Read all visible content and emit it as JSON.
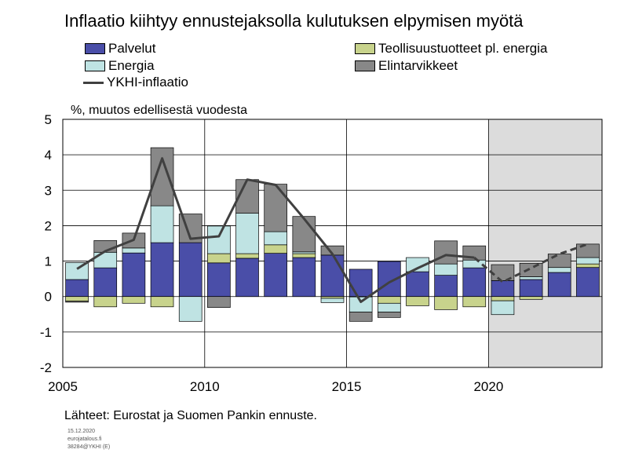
{
  "title": "Inflaatio kiihtyy ennustejaksolla kulutuksen elpymisen myötä",
  "source": "Lähteet: Eurostat ja Suomen Pankin ennuste.",
  "meta": [
    "15.12.2020",
    "eurojatalous.fi",
    "38284@YKHI (E)"
  ],
  "chart_data": {
    "type": "bar",
    "subtype": "stacked bar with line overlay",
    "title": "Inflaatio kiihtyy ennustejaksolla kulutuksen elpymisen myötä",
    "ylabel": "%, muutos edellisestä vuodesta",
    "xlabel": "",
    "ylim": [
      -2,
      5
    ],
    "yticks": [
      "5",
      "4",
      "3",
      "2",
      "1",
      "0",
      "-1",
      "-2"
    ],
    "xtick_labels": [
      "2005",
      "2010",
      "2015",
      "2020"
    ],
    "categories": [
      2005,
      2006,
      2007,
      2008,
      2009,
      2010,
      2011,
      2012,
      2013,
      2014,
      2015,
      2016,
      2017,
      2018,
      2019,
      2020,
      2021,
      2022,
      2023
    ],
    "forecast_start": 2020,
    "grid": "horizontal and vertical at tick labels",
    "legend_position": "top",
    "series": [
      {
        "name": "Palvelut",
        "color": "#4a4ea8",
        "values": [
          0.48,
          0.81,
          1.23,
          1.52,
          1.52,
          0.95,
          1.08,
          1.22,
          1.1,
          1.17,
          0.77,
          0.99,
          0.7,
          0.6,
          0.81,
          0.45,
          0.48,
          0.68,
          0.82
        ]
      },
      {
        "name": "Teollisuustuotteet pl. energia",
        "color": "#c8d38c",
        "values": [
          -0.13,
          -0.29,
          -0.19,
          -0.29,
          0.0,
          0.26,
          0.13,
          0.24,
          0.11,
          -0.05,
          -0.01,
          -0.19,
          -0.26,
          -0.37,
          -0.29,
          -0.12,
          -0.08,
          0.0,
          0.1
        ]
      },
      {
        "name": "Energia",
        "color": "#bfe3e3",
        "values": [
          0.48,
          0.44,
          0.14,
          1.04,
          -0.7,
          0.78,
          1.14,
          0.37,
          0.05,
          -0.12,
          -0.43,
          -0.25,
          0.4,
          0.32,
          0.22,
          -0.39,
          0.08,
          0.14,
          0.18
        ]
      },
      {
        "name": "Elintarvikkeet",
        "color": "#888888",
        "values": [
          -0.03,
          0.33,
          0.42,
          1.64,
          0.81,
          -0.31,
          0.95,
          1.34,
          1.0,
          0.26,
          -0.26,
          -0.15,
          0.0,
          0.65,
          0.4,
          0.45,
          0.38,
          0.38,
          0.38
        ]
      }
    ],
    "line": {
      "name": "YKHI-inflaatio",
      "color": "#404040",
      "x": [
        2005,
        2006,
        2007,
        2008,
        2009,
        2010,
        2011,
        2012,
        2013,
        2014,
        2015,
        2016,
        2017,
        2018,
        2019,
        2020,
        2021,
        2022,
        2023
      ],
      "values": [
        0.78,
        1.28,
        1.6,
        3.9,
        1.63,
        1.7,
        3.3,
        3.15,
        2.2,
        1.2,
        -0.15,
        0.4,
        0.8,
        1.17,
        1.1,
        0.41,
        0.8,
        1.2,
        1.48
      ],
      "forecast_from": 2020
    }
  }
}
